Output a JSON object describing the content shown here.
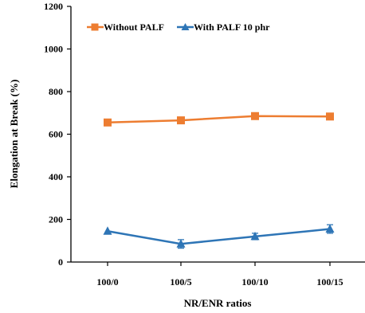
{
  "chart_data": {
    "type": "line",
    "xlabel": "NR/ENR ratios",
    "ylabel": "Elongation at Break (%)",
    "ylim": [
      0,
      1200
    ],
    "yticks": [
      0,
      200,
      400,
      600,
      800,
      1000,
      1200
    ],
    "categories": [
      "100/0",
      "100/5",
      "100/10",
      "100/15"
    ],
    "grid": false,
    "legend_position": "top-left",
    "series": [
      {
        "name": "Without PALF",
        "values": [
          655,
          665,
          685,
          683
        ],
        "errors": [
          0,
          0,
          0,
          0
        ],
        "color": "#ED7D31",
        "marker": "square"
      },
      {
        "name": "With PALF 10 phr",
        "values": [
          145,
          85,
          120,
          155
        ],
        "errors": [
          0,
          20,
          15,
          20
        ],
        "color": "#2E75B6",
        "marker": "triangle"
      }
    ]
  }
}
